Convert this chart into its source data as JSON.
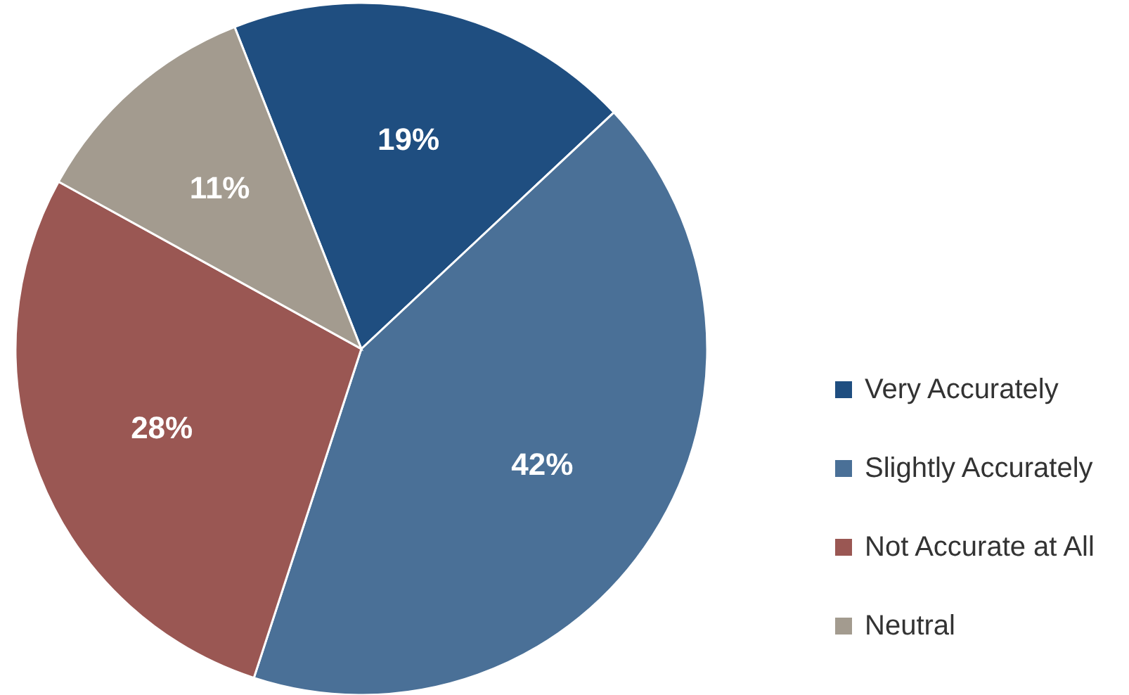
{
  "chart_data": {
    "type": "pie",
    "categories": [
      "Very Accurately",
      "Slightly Accurately",
      "Not Accurate at All",
      "Neutral"
    ],
    "values": [
      19,
      42,
      28,
      11
    ],
    "colors": [
      "#1f4e80",
      "#4a7097",
      "#9a5753",
      "#a39b8f"
    ],
    "value_labels": [
      "19%",
      "42%",
      "28%",
      "11%"
    ],
    "legend": "right"
  }
}
